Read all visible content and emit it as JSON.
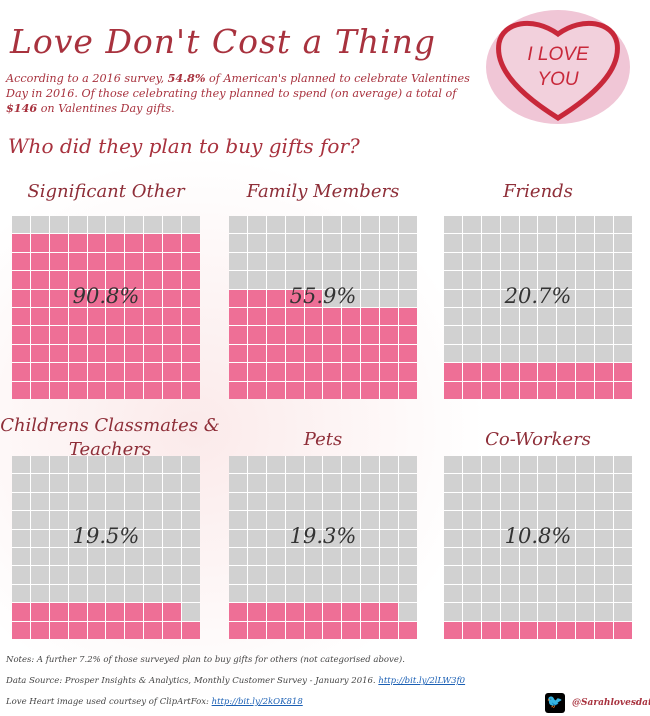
{
  "header": {
    "title": "Love Don't Cost a Thing",
    "intro_1": "According to a 2016 survey, ",
    "intro_pct": "54.8%",
    "intro_2": " of American's planned to celebrate Valentines Day in 2016. Of those celebrating they planned to spend (on average) a total of ",
    "intro_amount": "$146",
    "intro_3": " on Valentines Day gifts.",
    "question": "Who did they plan to buy gifts for?",
    "heart_text_1": "I LOVE",
    "heart_text_2": "YOU"
  },
  "colors": {
    "filled": "#ee6f96",
    "empty": "#d1d1d1",
    "title": "#a8323e"
  },
  "panels": [
    {
      "title": "Significant Other",
      "value": 90.8,
      "label": "90.8%"
    },
    {
      "title": "Family Members",
      "value": 55.9,
      "label": "55.9%"
    },
    {
      "title": "Friends",
      "value": 20.7,
      "label": "20.7%"
    },
    {
      "title": "Childrens Classmates & Teachers",
      "value": 19.5,
      "label": "19.5%"
    },
    {
      "title": "Pets",
      "value": 19.3,
      "label": "19.3%"
    },
    {
      "title": "Co-Workers",
      "value": 10.8,
      "label": "10.8%"
    }
  ],
  "footer": {
    "notes": "Notes: A further 7.2% of those surveyed plan to buy gifts for others (not categorised above).",
    "source": "Data Source: Prosper Insights & Analytics, Monthly Customer Survey - January 2016. ",
    "source_link": "http://bit.ly/2lLW3f0",
    "image_credit": "Love Heart image used courtsey of ClipArtFox: ",
    "image_link": "http://bit.ly/2kOK818",
    "twitter_icon": "twitter-icon",
    "handle": "@Sarahlovesdata"
  }
}
